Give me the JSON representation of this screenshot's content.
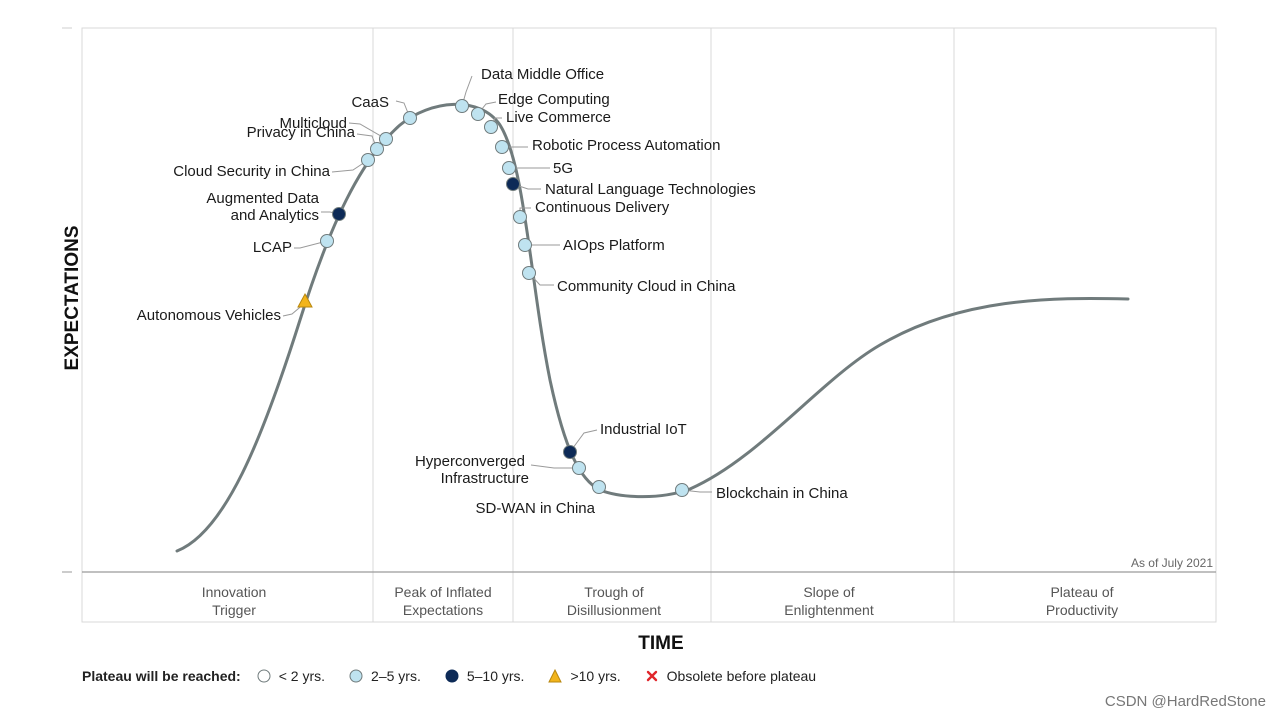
{
  "axis": {
    "y_title": "EXPECTATIONS",
    "x_title": "TIME"
  },
  "as_of": "As of July 2021",
  "phases": [
    {
      "line1": "Innovation",
      "line2": "Trigger"
    },
    {
      "line1": "Peak of Inflated",
      "line2": "Expectations"
    },
    {
      "line1": "Trough of",
      "line2": "Disillusionment"
    },
    {
      "line1": "Slope of",
      "line2": "Enlightenment"
    },
    {
      "line1": "Plateau of",
      "line2": "Productivity"
    }
  ],
  "technologies": [
    {
      "name": "Data Middle Office",
      "category": "2-5"
    },
    {
      "name": "Edge Computing",
      "category": "2-5"
    },
    {
      "name": "Live Commerce",
      "category": "2-5"
    },
    {
      "name": "CaaS",
      "category": "2-5"
    },
    {
      "name": "Multicloud",
      "category": "2-5"
    },
    {
      "name": "Privacy in China",
      "category": "2-5"
    },
    {
      "name": "Cloud Security in China",
      "category": "2-5"
    },
    {
      "name": "Robotic Process Automation",
      "category": "2-5"
    },
    {
      "name": "5G",
      "category": "2-5"
    },
    {
      "name": "Natural Language Technologies",
      "category": "5-10"
    },
    {
      "name": "Continuous Delivery",
      "category": "2-5"
    },
    {
      "name": "Augmented Data",
      "name2": "and Analytics",
      "category": "5-10"
    },
    {
      "name": "AIOps Platform",
      "category": "2-5"
    },
    {
      "name": "LCAP",
      "category": "2-5"
    },
    {
      "name": "Community Cloud in China",
      "category": "2-5"
    },
    {
      "name": "Autonomous Vehicles",
      "category": ">10"
    },
    {
      "name": "Industrial IoT",
      "category": "5-10"
    },
    {
      "name": "Hyperconverged",
      "name2": "Infrastructure",
      "category": "2-5"
    },
    {
      "name": "SD-WAN in China",
      "category": "2-5"
    },
    {
      "name": "Blockchain in China",
      "category": "2-5"
    }
  ],
  "legend": {
    "title": "Plateau will be reached:",
    "items": [
      {
        "label": "< 2 yrs.",
        "marker": "circle-white"
      },
      {
        "label": "2–5 yrs.",
        "marker": "circle-light-blue"
      },
      {
        "label": "5–10 yrs.",
        "marker": "circle-dark-navy"
      },
      {
        "label": ">10 yrs.",
        "marker": "triangle-yellow"
      },
      {
        "label": "Obsolete before plateau",
        "marker": "x-red"
      }
    ]
  },
  "colors": {
    "lt2": "#ffffff",
    "2-5": "#bfe3f0",
    "5-10": "#0d2a57",
    ">10": "#f2b41b",
    "obsolete": "#e0262b",
    "curve": "#707b7c"
  },
  "watermark": "CSDN @HardRedStone"
}
